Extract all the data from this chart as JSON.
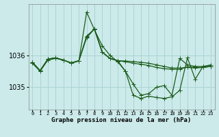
{
  "xlabel": "Graphe pression niveau de la mer (hPa)",
  "ylabel": "",
  "background_color": "#cceaea",
  "grid_color": "#aad4d4",
  "line_color": "#1a5c1a",
  "marker": "+",
  "markersize": 4,
  "linewidth": 0.9,
  "ylim": [
    1034.3,
    1037.6
  ],
  "xlim": [
    -0.5,
    23.5
  ],
  "yticks": [
    1035,
    1036
  ],
  "xticks": [
    0,
    1,
    2,
    3,
    4,
    5,
    6,
    7,
    8,
    9,
    10,
    11,
    12,
    13,
    14,
    15,
    16,
    17,
    18,
    19,
    20,
    21,
    22,
    23
  ],
  "series": [
    [
      1035.75,
      1035.5,
      1035.85,
      1035.9,
      1035.85,
      1035.75,
      1035.82,
      1037.35,
      1036.8,
      1036.3,
      1036.0,
      1035.8,
      1035.5,
      1035.1,
      1034.75,
      1034.8,
      1035.0,
      1035.05,
      1034.75,
      1035.9,
      1035.7,
      1035.65,
      1035.65,
      1035.7
    ],
    [
      1035.78,
      1035.52,
      1035.88,
      1035.92,
      1035.85,
      1035.76,
      1035.83,
      1036.55,
      1036.82,
      1036.1,
      1035.9,
      1035.83,
      1035.82,
      1035.8,
      1035.78,
      1035.75,
      1035.7,
      1035.65,
      1035.6,
      1035.6,
      1035.62,
      1035.6,
      1035.62,
      1035.65
    ],
    [
      1035.78,
      1035.52,
      1035.88,
      1035.92,
      1035.85,
      1035.76,
      1035.83,
      1036.6,
      1036.82,
      1036.1,
      1035.9,
      1035.83,
      1035.5,
      1034.75,
      1034.65,
      1034.72,
      1034.68,
      1034.65,
      1034.7,
      1034.9,
      1035.92,
      1035.25,
      1035.65,
      1035.65
    ],
    [
      1035.78,
      1035.52,
      1035.88,
      1035.92,
      1035.85,
      1035.76,
      1035.83,
      1036.58,
      1036.82,
      1036.1,
      1035.9,
      1035.83,
      1035.8,
      1035.75,
      1035.72,
      1035.68,
      1035.62,
      1035.58,
      1035.56,
      1035.56,
      1035.64,
      1035.62,
      1035.62,
      1035.65
    ]
  ]
}
